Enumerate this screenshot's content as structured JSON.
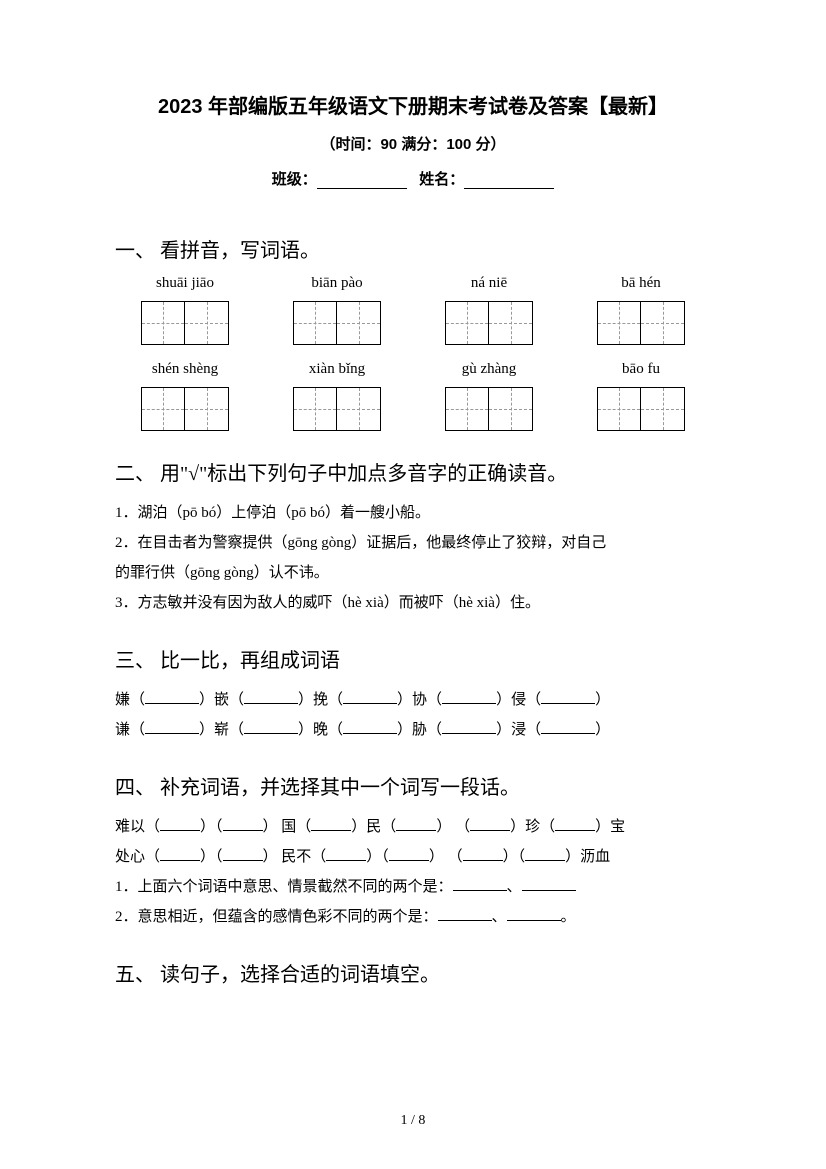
{
  "title": "2023 年部编版五年级语文下册期末考试卷及答案【最新】",
  "subtitle": "（时间：90   满分：100 分）",
  "class_label": "班级：",
  "name_label": "姓名：",
  "section1": {
    "heading": "一、 看拼音，写词语。",
    "row1": [
      "shuāi jiāo",
      "biān pào",
      "ná niē",
      "bā hén"
    ],
    "row2": [
      "shén shèng",
      "xiàn bǐng",
      "gù zhàng",
      "bāo fu"
    ]
  },
  "section2": {
    "heading": "二、 用\"√\"标出下列句子中加点多音字的正确读音。",
    "line1": "1．湖泊（pō   bó）上停泊（pō   bó）着一艘小船。",
    "line2": "2．在目击者为警察提供（gōng     gòng）证据后，他最终停止了狡辩，对自己",
    "line3": "的罪行供（gōng   gòng）认不讳。",
    "line4": "3．方志敏并没有因为敌人的威吓（hè   xià）而被吓（hè   xià）住。"
  },
  "section3": {
    "heading": "三、 比一比，再组成词语",
    "row1_chars": [
      "嫌（",
      "）嵌（",
      "）挽（",
      "）协（",
      "）侵（",
      "）"
    ],
    "row2_chars": [
      "谦（",
      "）崭（",
      "）晚（",
      "）胁（",
      "）浸（",
      "）"
    ]
  },
  "section4": {
    "heading": "四、 补充词语，并选择其中一个词写一段话。",
    "line1_parts": [
      "难以（",
      "）（",
      "）   国（",
      "）民（",
      "）   （",
      "）珍（",
      "）宝"
    ],
    "line2_parts": [
      "处心（",
      "）（",
      "）   民不（",
      "）（",
      "）   （",
      "）（",
      "）沥血"
    ],
    "q1": "1．上面六个词语中意思、情景截然不同的两个是：",
    "q2": "2．意思相近，但蕴含的感情色彩不同的两个是："
  },
  "section5": {
    "heading": "五、 读句子，选择合适的词语填空。"
  },
  "page_num": "1  /  8"
}
